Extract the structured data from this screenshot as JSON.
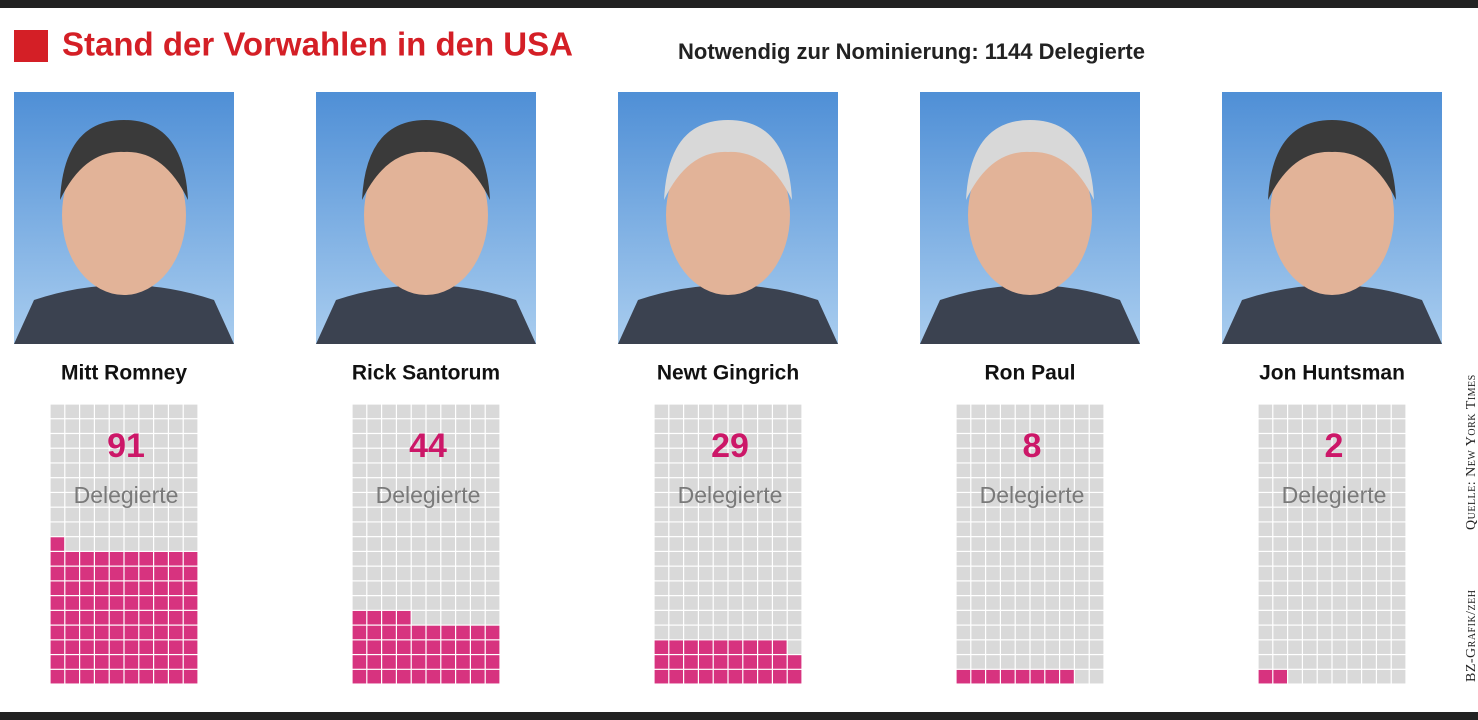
{
  "chart_data": {
    "type": "waffle",
    "title": "Stand der Vorwahlen in den USA",
    "subtitle": "Notwendig zur Nominierung: 1144 Delegierte",
    "unit_label": "Delegierte",
    "categories": [
      "Mitt Romney",
      "Rick Santorum",
      "Newt Gingrich",
      "Ron Paul",
      "Jon Huntsman"
    ],
    "values": [
      91,
      44,
      29,
      8,
      2
    ],
    "color": "#d7337f",
    "source": "Quelle: New York Times",
    "credit": "BZ-Grafik/zeh"
  }
}
